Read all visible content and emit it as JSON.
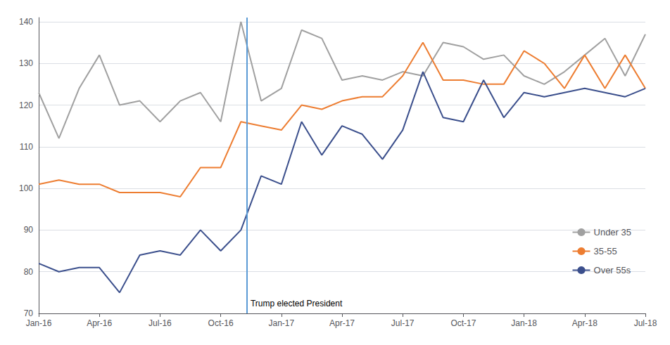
{
  "chart_data": {
    "type": "line",
    "categories": [
      "Jan-16",
      null,
      null,
      "Apr-16",
      null,
      null,
      "Jul-16",
      null,
      null,
      "Oct-16",
      null,
      null,
      "Jan-17",
      null,
      null,
      "Apr-17",
      null,
      null,
      "Jul-17",
      null,
      null,
      "Oct-17",
      null,
      null,
      "Jan-18",
      null,
      null,
      "Apr-18",
      null,
      null,
      "Jul-18"
    ],
    "series": [
      {
        "name": "Under 35",
        "color": "#a0a0a0",
        "values": [
          123,
          112,
          124,
          132,
          120,
          121,
          116,
          121,
          123,
          116,
          140,
          121,
          124,
          138,
          136,
          126,
          127,
          126,
          128,
          127,
          135,
          134,
          131,
          132,
          127,
          125,
          128,
          132,
          136,
          127,
          137
        ]
      },
      {
        "name": "35-55",
        "color": "#ed7d31",
        "values": [
          101,
          102,
          101,
          101,
          99,
          99,
          99,
          98,
          105,
          105,
          116,
          115,
          114,
          120,
          119,
          121,
          122,
          122,
          127,
          135,
          126,
          126,
          125,
          125,
          133,
          130,
          124,
          132,
          124,
          132,
          124
        ]
      },
      {
        "name": "Over 55s",
        "color": "#3b4f8c",
        "values": [
          82,
          80,
          81,
          81,
          75,
          84,
          85,
          84,
          90,
          85,
          90,
          103,
          101,
          116,
          108,
          115,
          113,
          107,
          114,
          128,
          117,
          116,
          126,
          117,
          123,
          122,
          123,
          124,
          123,
          122,
          124
        ]
      }
    ],
    "annotations": [
      {
        "type": "vline",
        "x": 10.3,
        "text": "Trump elected President",
        "color": "#5b9bd5"
      }
    ],
    "ylim": [
      70,
      141
    ],
    "yticks": [
      70,
      80,
      90,
      100,
      110,
      120,
      130,
      140
    ],
    "grid": true,
    "legend": "lower right",
    "line_style": "solid"
  }
}
